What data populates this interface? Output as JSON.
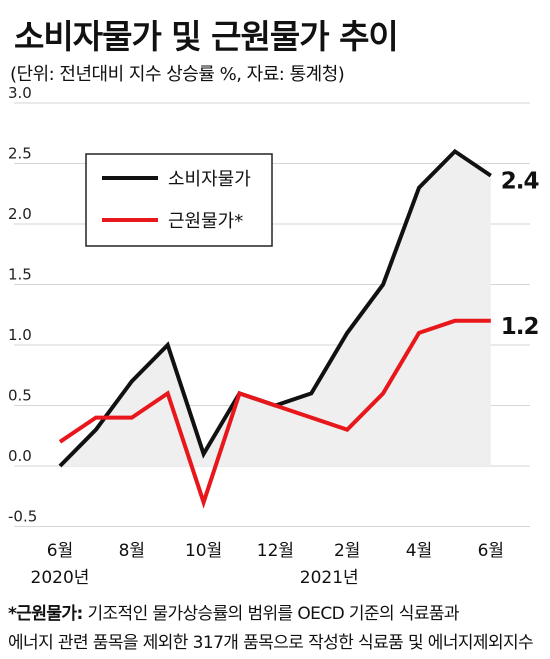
{
  "header": {
    "title": "소비자물가 및 근원물가 추이",
    "subtitle": "(단위: 전년대비 지수 상승률 %, 자료: 통계청)"
  },
  "footnote": {
    "marker": "*근원물가:",
    "line1_rest": " 기조적인 물가상승률의 범위를 OECD 기준의 식료품과",
    "line2": "에너지 관련 품목을 제외한 317개 품목으로 작성한 식료품 및 에너지제외지수"
  },
  "colors": {
    "cpi": "#111111",
    "core": "#e8171b",
    "area_fill": "#efefef",
    "grid": "#d6d6d6"
  },
  "chart_data": {
    "type": "line",
    "title": "소비자물가 및 근원물가 추이",
    "ylim": [
      -0.5,
      3.0
    ],
    "yticks": [
      "3.0",
      "2.5",
      "2.0",
      "1.5",
      "1.0",
      "0.5",
      "0.0",
      "-0.5"
    ],
    "x_months": [
      "2020-06",
      "2020-07",
      "2020-08",
      "2020-09",
      "2020-10",
      "2020-11",
      "2020-12",
      "2021-01",
      "2021-02",
      "2021-03",
      "2021-04",
      "2021-05",
      "2021-06"
    ],
    "xtick_labels": [
      {
        "index": 0,
        "label": "6월"
      },
      {
        "index": 2,
        "label": "8월"
      },
      {
        "index": 4,
        "label": "10월"
      },
      {
        "index": 6,
        "label": "12월"
      },
      {
        "index": 8,
        "label": "2월"
      },
      {
        "index": 10,
        "label": "4월"
      },
      {
        "index": 12,
        "label": "6월"
      }
    ],
    "year_labels": [
      {
        "index": 0,
        "label": "2020년"
      },
      {
        "index": 7.5,
        "label": "2021년"
      }
    ],
    "series": [
      {
        "name": "소비자물가",
        "x": [
          0,
          1,
          2,
          3,
          4,
          5,
          6,
          7,
          8,
          9,
          10,
          11,
          12
        ],
        "values": [
          0.0,
          0.3,
          0.7,
          1.0,
          0.1,
          0.6,
          0.5,
          0.6,
          1.1,
          1.5,
          2.3,
          2.6,
          2.4
        ],
        "end_label": "2.4",
        "filled": true
      },
      {
        "name": "근원물가*",
        "x": [
          0,
          1,
          2,
          3,
          4,
          5,
          6,
          8,
          9,
          10,
          11,
          12
        ],
        "values": [
          0.2,
          0.4,
          0.4,
          0.6,
          -0.3,
          0.6,
          0.5,
          0.3,
          0.6,
          1.1,
          1.2,
          1.2
        ],
        "end_label": "1.2",
        "filled": false
      }
    ],
    "legend": {
      "placement": "top-left"
    }
  }
}
